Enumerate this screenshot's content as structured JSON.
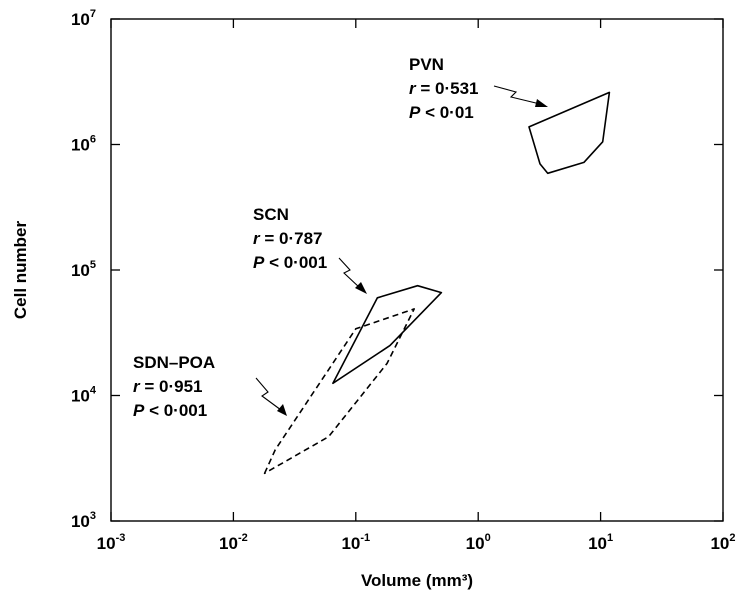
{
  "chart_data": {
    "type": "scatter",
    "title": "",
    "xlabel": "Volume (mm³)",
    "ylabel": "Cell number",
    "x_scale": "log",
    "y_scale": "log",
    "xlim": [
      0.001,
      100
    ],
    "ylim": [
      1000,
      10000000
    ],
    "grid": false,
    "x_ticks": [
      {
        "base": "10",
        "exp": "-3",
        "value": 0.001
      },
      {
        "base": "10",
        "exp": "-2",
        "value": 0.01
      },
      {
        "base": "10",
        "exp": "-1",
        "value": 0.1
      },
      {
        "base": "10",
        "exp": "0",
        "value": 1
      },
      {
        "base": "10",
        "exp": "1",
        "value": 10
      },
      {
        "base": "10",
        "exp": "2",
        "value": 100
      }
    ],
    "y_ticks": [
      {
        "base": "10",
        "exp": "3",
        "value": 1000
      },
      {
        "base": "10",
        "exp": "4",
        "value": 10000
      },
      {
        "base": "10",
        "exp": "5",
        "value": 100000
      },
      {
        "base": "10",
        "exp": "6",
        "value": 1000000
      },
      {
        "base": "10",
        "exp": "7",
        "value": 10000000
      }
    ],
    "series": [
      {
        "name": "PVN",
        "style": "solid",
        "polygon": [
          [
            2.6,
            1380000
          ],
          [
            11.8,
            2600000
          ],
          [
            10.4,
            1050000
          ],
          [
            7.3,
            720000
          ],
          [
            3.7,
            590000
          ],
          [
            3.2,
            700000
          ]
        ],
        "annotation": {
          "name": "PVN",
          "r_label": "r",
          "r_text": " = 0·531",
          "p_label": "P",
          "p_text": " < 0·01"
        }
      },
      {
        "name": "SCN",
        "style": "solid",
        "polygon": [
          [
            0.065,
            12500
          ],
          [
            0.15,
            60000
          ],
          [
            0.32,
            75000
          ],
          [
            0.5,
            66000
          ],
          [
            0.19,
            25000
          ]
        ],
        "annotation": {
          "name": "SCN",
          "r_label": "r",
          "r_text": " = 0·787",
          "p_label": "P",
          "p_text": " < 0·001"
        }
      },
      {
        "name": "SDN–POA",
        "style": "dashed",
        "polygon": [
          [
            0.018,
            2400
          ],
          [
            0.022,
            3700
          ],
          [
            0.1,
            34000
          ],
          [
            0.3,
            49000
          ],
          [
            0.18,
            18000
          ],
          [
            0.06,
            4700
          ]
        ],
        "annotation": {
          "name": "SDN–POA",
          "r_label": "r",
          "r_text": " = 0·951",
          "p_label": "P",
          "p_text": " < 0·001"
        }
      }
    ]
  }
}
